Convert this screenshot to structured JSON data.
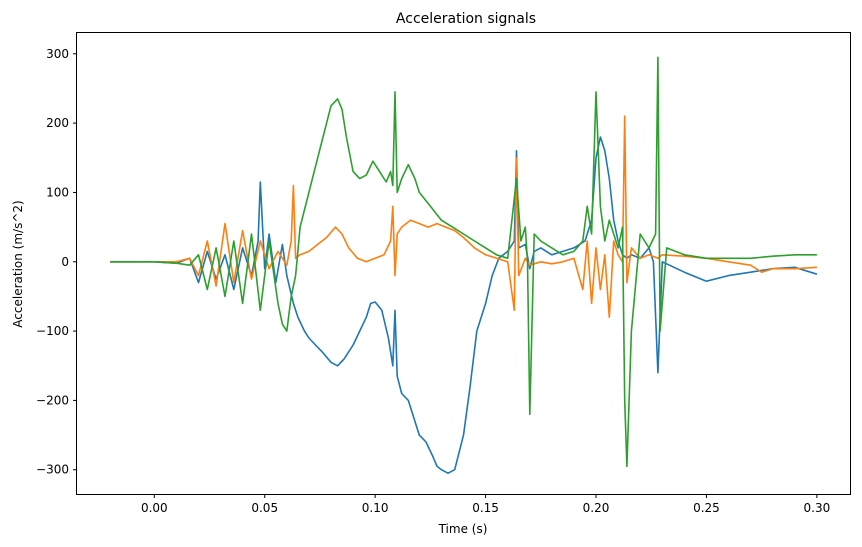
{
  "chart_data": {
    "type": "line",
    "title": "Acceleration signals",
    "xlabel": "Time (s)",
    "ylabel": "Acceleration (m/s^2)",
    "xlim": [
      -0.035,
      0.315
    ],
    "ylim": [
      -335,
      330
    ],
    "xticks": [
      0.0,
      0.05,
      0.1,
      0.15,
      0.2,
      0.25,
      0.3
    ],
    "xtick_labels": [
      "0.00",
      "0.05",
      "0.10",
      "0.15",
      "0.20",
      "0.25",
      "0.30"
    ],
    "yticks": [
      -300,
      -200,
      -100,
      0,
      100,
      200,
      300
    ],
    "ytick_labels": [
      "−300",
      "−200",
      "−100",
      "0",
      "100",
      "200",
      "300"
    ],
    "grid": false,
    "series": [
      {
        "color": "#1f77b4",
        "x": [
          -0.02,
          -0.01,
          0.0,
          0.01,
          0.016,
          0.02,
          0.024,
          0.028,
          0.032,
          0.036,
          0.04,
          0.044,
          0.047,
          0.048,
          0.05,
          0.052,
          0.055,
          0.058,
          0.06,
          0.063,
          0.065,
          0.068,
          0.07,
          0.073,
          0.076,
          0.08,
          0.083,
          0.086,
          0.09,
          0.093,
          0.096,
          0.098,
          0.1,
          0.103,
          0.106,
          0.108,
          0.109,
          0.11,
          0.112,
          0.115,
          0.118,
          0.12,
          0.123,
          0.126,
          0.128,
          0.13,
          0.133,
          0.136,
          0.14,
          0.143,
          0.146,
          0.15,
          0.153,
          0.156,
          0.16,
          0.163,
          0.164,
          0.165,
          0.168,
          0.17,
          0.172,
          0.175,
          0.18,
          0.185,
          0.19,
          0.195,
          0.198,
          0.2,
          0.202,
          0.204,
          0.206,
          0.208,
          0.21,
          0.212,
          0.214,
          0.216,
          0.22,
          0.224,
          0.226,
          0.228,
          0.23,
          0.24,
          0.25,
          0.26,
          0.27,
          0.28,
          0.29,
          0.3
        ],
        "y": [
          0,
          0,
          0,
          -2,
          5,
          -30,
          15,
          -25,
          10,
          -40,
          20,
          -20,
          30,
          115,
          -10,
          40,
          -30,
          25,
          -20,
          -60,
          -80,
          -100,
          -110,
          -120,
          -130,
          -145,
          -150,
          -140,
          -120,
          -100,
          -80,
          -60,
          -58,
          -70,
          -110,
          -150,
          -70,
          -165,
          -190,
          -200,
          -230,
          -250,
          -260,
          -280,
          -295,
          -300,
          -305,
          -300,
          -250,
          -180,
          -100,
          -60,
          -20,
          5,
          15,
          30,
          160,
          20,
          25,
          -10,
          15,
          20,
          10,
          15,
          20,
          30,
          60,
          150,
          180,
          160,
          120,
          60,
          30,
          10,
          5,
          10,
          5,
          20,
          0,
          -160,
          0,
          -15,
          -28,
          -20,
          -15,
          -10,
          -8,
          -18
        ]
      },
      {
        "color": "#ff7f0e",
        "x": [
          -0.02,
          -0.01,
          0.0,
          0.01,
          0.016,
          0.02,
          0.024,
          0.028,
          0.032,
          0.036,
          0.04,
          0.044,
          0.048,
          0.052,
          0.056,
          0.06,
          0.062,
          0.063,
          0.064,
          0.066,
          0.07,
          0.074,
          0.078,
          0.082,
          0.085,
          0.088,
          0.092,
          0.096,
          0.1,
          0.104,
          0.107,
          0.108,
          0.109,
          0.11,
          0.112,
          0.116,
          0.12,
          0.124,
          0.128,
          0.132,
          0.136,
          0.14,
          0.145,
          0.15,
          0.155,
          0.16,
          0.163,
          0.164,
          0.165,
          0.168,
          0.17,
          0.175,
          0.18,
          0.185,
          0.19,
          0.194,
          0.196,
          0.198,
          0.2,
          0.202,
          0.204,
          0.206,
          0.208,
          0.21,
          0.212,
          0.213,
          0.214,
          0.216,
          0.22,
          0.224,
          0.228,
          0.23,
          0.24,
          0.25,
          0.26,
          0.27,
          0.275,
          0.28,
          0.29,
          0.3
        ],
        "y": [
          0,
          0,
          0,
          0,
          5,
          -20,
          30,
          -35,
          55,
          -30,
          45,
          -25,
          30,
          -10,
          15,
          -5,
          30,
          110,
          5,
          10,
          15,
          25,
          35,
          50,
          40,
          20,
          5,
          0,
          5,
          10,
          30,
          80,
          -20,
          40,
          50,
          60,
          55,
          50,
          55,
          50,
          45,
          35,
          20,
          10,
          5,
          0,
          -70,
          150,
          -20,
          5,
          -5,
          0,
          -3,
          0,
          5,
          -40,
          30,
          -60,
          20,
          -40,
          10,
          -80,
          30,
          10,
          0,
          210,
          -30,
          20,
          5,
          10,
          5,
          10,
          8,
          5,
          0,
          -5,
          -15,
          -10,
          -10,
          -8
        ]
      },
      {
        "color": "#2ca02c",
        "x": [
          -0.02,
          -0.01,
          0.0,
          0.01,
          0.016,
          0.02,
          0.024,
          0.028,
          0.032,
          0.036,
          0.04,
          0.044,
          0.048,
          0.052,
          0.056,
          0.058,
          0.06,
          0.062,
          0.064,
          0.066,
          0.07,
          0.074,
          0.078,
          0.08,
          0.083,
          0.085,
          0.087,
          0.09,
          0.093,
          0.096,
          0.099,
          0.102,
          0.105,
          0.107,
          0.108,
          0.109,
          0.11,
          0.112,
          0.115,
          0.118,
          0.12,
          0.125,
          0.13,
          0.135,
          0.14,
          0.145,
          0.15,
          0.155,
          0.16,
          0.164,
          0.166,
          0.168,
          0.169,
          0.17,
          0.172,
          0.175,
          0.18,
          0.185,
          0.19,
          0.194,
          0.196,
          0.198,
          0.2,
          0.202,
          0.204,
          0.206,
          0.208,
          0.21,
          0.212,
          0.213,
          0.214,
          0.216,
          0.22,
          0.224,
          0.227,
          0.228,
          0.229,
          0.232,
          0.24,
          0.25,
          0.26,
          0.27,
          0.28,
          0.29,
          0.3
        ],
        "y": [
          0,
          0,
          0,
          -2,
          -5,
          10,
          -40,
          20,
          -50,
          30,
          -60,
          40,
          -70,
          30,
          -60,
          -90,
          -100,
          -50,
          -20,
          50,
          100,
          150,
          200,
          225,
          235,
          220,
          180,
          130,
          120,
          125,
          145,
          130,
          115,
          130,
          110,
          245,
          100,
          120,
          140,
          120,
          100,
          80,
          60,
          50,
          40,
          30,
          20,
          10,
          5,
          120,
          30,
          50,
          0,
          -220,
          40,
          30,
          20,
          10,
          15,
          30,
          80,
          40,
          245,
          80,
          30,
          60,
          40,
          20,
          50,
          -200,
          -295,
          -100,
          40,
          20,
          40,
          295,
          -100,
          20,
          10,
          5,
          5,
          5,
          8,
          10,
          10
        ]
      }
    ]
  }
}
